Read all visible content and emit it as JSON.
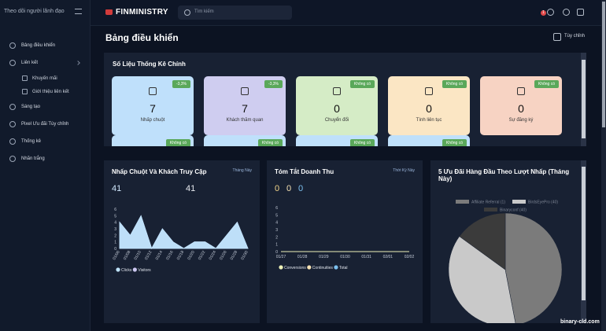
{
  "sidebar": {
    "title": "Theo dõi người lãnh đạo",
    "menu": [
      {
        "label": "Bảng điều khiển"
      },
      {
        "label": "Liên kết",
        "children": [
          "Khuyến mãi",
          "Giới thiệu liên kết"
        ]
      },
      {
        "label": "Sáng tạo"
      },
      {
        "label": "Pixel Ưu đãi Tùy chỉnh"
      },
      {
        "label": "Thống kê"
      },
      {
        "label": "Nhãn trắng"
      }
    ]
  },
  "topbar": {
    "brand": "FINMINISTRY",
    "search_placeholder": "Tìm kiếm",
    "notifications": "1"
  },
  "page": {
    "title": "Bảng điều khiển",
    "customize": "Tùy chỉnh",
    "watermark": "binary-cld.com"
  },
  "stats": {
    "title": "Số Liệu Thống Kê Chính",
    "cards": [
      {
        "label": "Nhấp chuột",
        "value": 7,
        "change": "-3,3%",
        "color": "#bfe0fb"
      },
      {
        "label": "Khách thăm quan",
        "value": 7,
        "change": "-3,3%",
        "color": "#cfcdf0"
      },
      {
        "label": "Chuyển đổi",
        "value": 0,
        "change": "Không có",
        "color": "#d5ecc6"
      },
      {
        "label": "Tính liên tục",
        "value": 0,
        "change": "Không có",
        "color": "#fbe6c4"
      },
      {
        "label": "Sự đăng ký",
        "value": 0,
        "change": "Không có",
        "color": "#f7d3c3"
      }
    ],
    "more_cards": [
      {
        "change": "Không có",
        "color": "#bfe0fb"
      },
      {
        "change": "Không có",
        "color": "#bfe0fb"
      },
      {
        "change": "Không có",
        "color": "#bfe0fb"
      },
      {
        "change": "Không có",
        "color": "#bfe0fb"
      }
    ]
  },
  "chart_data": [
    {
      "type": "area",
      "title": "Nhấp Chuột Và Khách Truy Cập",
      "period": "Tháng Này",
      "totals": [
        41,
        41
      ],
      "categories": [
        "01/06",
        "01/08",
        "01/10",
        "01/12",
        "01/14",
        "01/16",
        "01/18",
        "01/20",
        "01/22",
        "01/24",
        "01/26",
        "01/28",
        "01/30"
      ],
      "series": [
        {
          "name": "Clicks",
          "color": "#bfe3fb",
          "values": [
            4,
            2,
            5,
            0,
            3,
            1,
            0,
            1,
            1,
            0,
            2,
            4,
            0
          ]
        },
        {
          "name": "Visitors",
          "color": "#cdc8f2",
          "values": [
            4,
            2,
            5,
            0,
            3,
            1,
            0,
            1,
            1,
            0,
            2,
            4,
            0
          ]
        }
      ],
      "ylim": [
        0,
        6
      ],
      "yticks": [
        0,
        1,
        2,
        3,
        4,
        5,
        6
      ]
    },
    {
      "type": "line",
      "title": "Tóm Tắt Doanh Thu",
      "period": "Thời Kỳ Này",
      "totals": [
        0,
        0,
        0
      ],
      "categories": [
        "01/27",
        "01/28",
        "01/29",
        "01/30",
        "01/31",
        "02/01",
        "02/02"
      ],
      "series": [
        {
          "name": "Conversions",
          "color": "#eef2b8",
          "values": [
            0,
            0,
            0,
            0,
            0,
            0,
            0
          ]
        },
        {
          "name": "Continuities",
          "color": "#f6e2b4",
          "values": [
            0,
            0,
            0,
            0,
            0,
            0,
            0
          ]
        },
        {
          "name": "Total",
          "color": "#7cc0ee",
          "values": [
            0,
            0,
            0,
            0,
            0,
            0,
            0
          ]
        }
      ],
      "ylim": [
        0,
        6
      ],
      "yticks": [
        0,
        1,
        2,
        3,
        4,
        5,
        6
      ]
    },
    {
      "type": "pie",
      "title": "5 Ưu Đãi Hàng Đầu Theo Lượt Nhấp (Tháng Này)",
      "labels": [
        "Affiliate Referral (1)",
        "BirdsEyePro (40)",
        "Binaryconf (40)"
      ],
      "values": [
        47,
        38,
        15
      ],
      "colors": [
        "#7b7b7b",
        "#c9c9c9",
        "#3b3b3b"
      ]
    }
  ]
}
